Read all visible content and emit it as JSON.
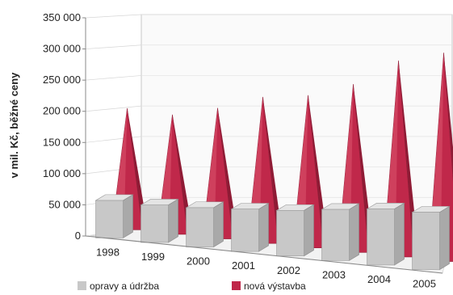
{
  "chart_data": {
    "type": "bar",
    "title": "",
    "ylabel": "v mil. Kč, běžné ceny",
    "xlabel": "",
    "categories": [
      "1998",
      "1999",
      "2000",
      "2001",
      "2002",
      "2003",
      "2004",
      "2005"
    ],
    "ylim": [
      0,
      350000
    ],
    "yticks": [
      "350 000",
      "300 000",
      "250 000",
      "200 000",
      "150 000",
      "100 000",
      "50 000",
      "0"
    ],
    "ytick_values": [
      350000,
      300000,
      250000,
      200000,
      150000,
      100000,
      50000,
      0
    ],
    "series": [
      {
        "name": "opravy a údržba",
        "shape": "box",
        "color": "#c8c8c8",
        "values": [
          60000,
          60000,
          63000,
          68000,
          73000,
          82000,
          90000,
          92000
        ]
      },
      {
        "name": "nová výstavba",
        "shape": "cone",
        "color": "#c0284a",
        "values": [
          195000,
          192000,
          210000,
          235000,
          245000,
          270000,
          315000,
          335000
        ]
      }
    ],
    "legend": "bottom",
    "grid": true
  }
}
